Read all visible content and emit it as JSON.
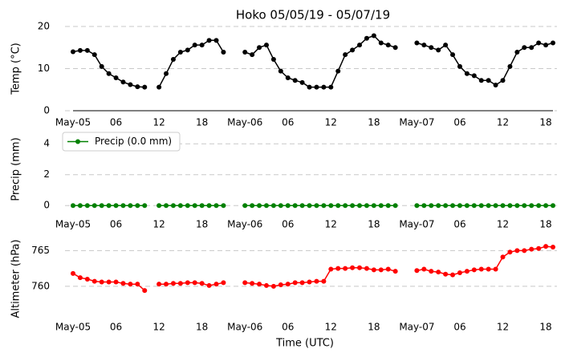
{
  "chart_data": [
    {
      "type": "line",
      "title": "Hoko 05/05/19 - 05/07/19",
      "ylabel": "Temp (°C)",
      "color": "#000000",
      "x_axis_line": true,
      "grid": true,
      "x": [
        0,
        1,
        2,
        3,
        4,
        5,
        6,
        7,
        8,
        9,
        10,
        11,
        12,
        13,
        14,
        15,
        16,
        17,
        18,
        19,
        20,
        21,
        22,
        23,
        24,
        25,
        26,
        27,
        28,
        29,
        30,
        31,
        32,
        33,
        34,
        35,
        36,
        37,
        38,
        39,
        40,
        41,
        42,
        43,
        44,
        45,
        46,
        47,
        48,
        49,
        50,
        51,
        52,
        53,
        54,
        55,
        56,
        57,
        58,
        59,
        60,
        61,
        62,
        63,
        64,
        65,
        66,
        67
      ],
      "values": [
        14,
        14.3,
        14.3,
        13.3,
        10.5,
        8.8,
        7.8,
        6.8,
        6.2,
        5.7,
        5.6,
        null,
        5.6,
        8.8,
        12.2,
        13.9,
        14.4,
        15.6,
        15.6,
        16.7,
        16.7,
        13.9,
        null,
        null,
        13.9,
        13.3,
        15,
        15.6,
        12.2,
        9.4,
        7.8,
        7.2,
        6.7,
        5.6,
        5.6,
        5.6,
        5.6,
        9.4,
        13.3,
        14.4,
        15.6,
        17.2,
        17.8,
        16.1,
        15.6,
        15,
        null,
        null,
        16.1,
        15.6,
        15,
        14.4,
        15.6,
        13.3,
        10.5,
        8.8,
        8.3,
        7.2,
        7.2,
        6.1,
        7.2,
        10.5,
        13.9,
        15,
        15,
        16.1,
        15.6,
        16.1
      ],
      "xlim": [
        0,
        67
      ],
      "ylim": [
        0,
        20
      ],
      "yticks": [
        0,
        10,
        20
      ],
      "xticks": [
        {
          "value": 0,
          "label": "May-05"
        },
        {
          "value": 6,
          "label": "06"
        },
        {
          "value": 12,
          "label": "12"
        },
        {
          "value": 18,
          "label": "18"
        },
        {
          "value": 24,
          "label": "May-06"
        },
        {
          "value": 30,
          "label": "06"
        },
        {
          "value": 36,
          "label": "12"
        },
        {
          "value": 42,
          "label": "18"
        },
        {
          "value": 48,
          "label": "May-07"
        },
        {
          "value": 54,
          "label": "06"
        },
        {
          "value": 60,
          "label": "12"
        },
        {
          "value": 66,
          "label": "18"
        }
      ]
    },
    {
      "type": "line",
      "ylabel": "Precip (mm)",
      "grid": true,
      "legend": "upper left",
      "x": [
        0,
        1,
        2,
        3,
        4,
        5,
        6,
        7,
        8,
        9,
        10,
        11,
        12,
        13,
        14,
        15,
        16,
        17,
        18,
        19,
        20,
        21,
        22,
        23,
        24,
        25,
        26,
        27,
        28,
        29,
        30,
        31,
        32,
        33,
        34,
        35,
        36,
        37,
        38,
        39,
        40,
        41,
        42,
        43,
        44,
        45,
        46,
        47,
        48,
        49,
        50,
        51,
        52,
        53,
        54,
        55,
        56,
        57,
        58,
        59,
        60,
        61,
        62,
        63,
        64,
        65,
        66,
        67
      ],
      "series": [
        {
          "name": "Precip (0.0 mm)",
          "color": "#008000",
          "values": [
            0,
            0,
            0,
            0,
            0,
            0,
            0,
            0,
            0,
            0,
            0,
            null,
            0,
            0,
            0,
            0,
            0,
            0,
            0,
            0,
            0,
            0,
            null,
            null,
            0,
            0,
            0,
            0,
            0,
            0,
            0,
            0,
            0,
            0,
            0,
            0,
            0,
            0,
            0,
            0,
            0,
            0,
            0,
            0,
            0,
            0,
            null,
            null,
            0,
            0,
            0,
            0,
            0,
            0,
            0,
            0,
            0,
            0,
            0,
            0,
            0,
            0,
            0,
            0,
            0,
            0,
            0,
            0
          ]
        }
      ],
      "xlim": [
        0,
        67
      ],
      "ylim": [
        -0.3,
        5
      ],
      "yticks": [
        0,
        2,
        4
      ],
      "xticks": [
        {
          "value": 0,
          "label": "May-05"
        },
        {
          "value": 6,
          "label": "06"
        },
        {
          "value": 12,
          "label": "12"
        },
        {
          "value": 18,
          "label": "18"
        },
        {
          "value": 24,
          "label": "May-06"
        },
        {
          "value": 30,
          "label": "06"
        },
        {
          "value": 36,
          "label": "12"
        },
        {
          "value": 42,
          "label": "18"
        },
        {
          "value": 48,
          "label": "May-07"
        },
        {
          "value": 54,
          "label": "06"
        },
        {
          "value": 60,
          "label": "12"
        },
        {
          "value": 66,
          "label": "18"
        }
      ]
    },
    {
      "type": "line",
      "ylabel": "Altimeter (hPa)",
      "xlabel": "Time (UTC)",
      "color": "#ff0000",
      "grid": true,
      "x": [
        0,
        1,
        2,
        3,
        4,
        5,
        6,
        7,
        8,
        9,
        10,
        11,
        12,
        13,
        14,
        15,
        16,
        17,
        18,
        19,
        20,
        21,
        22,
        23,
        24,
        25,
        26,
        27,
        28,
        29,
        30,
        31,
        32,
        33,
        34,
        35,
        36,
        37,
        38,
        39,
        40,
        41,
        42,
        43,
        44,
        45,
        46,
        47,
        48,
        49,
        50,
        51,
        52,
        53,
        54,
        55,
        56,
        57,
        58,
        59,
        60,
        61,
        62,
        63,
        64,
        65,
        66,
        67
      ],
      "values": [
        761.8,
        761.2,
        761,
        760.7,
        760.6,
        760.6,
        760.6,
        760.4,
        760.3,
        760.3,
        759.4,
        null,
        760.3,
        760.3,
        760.4,
        760.4,
        760.5,
        760.5,
        760.4,
        760.1,
        760.3,
        760.5,
        null,
        null,
        760.5,
        760.4,
        760.3,
        760.1,
        760,
        760.2,
        760.3,
        760.5,
        760.5,
        760.6,
        760.7,
        760.7,
        762.4,
        762.5,
        762.5,
        762.6,
        762.6,
        762.5,
        762.3,
        762.3,
        762.4,
        762.1,
        null,
        null,
        762.2,
        762.4,
        762.1,
        762,
        761.7,
        761.6,
        761.9,
        762.1,
        762.3,
        762.4,
        762.4,
        762.4,
        764.1,
        764.8,
        765,
        765,
        765.2,
        765.3,
        765.6,
        765.5
      ],
      "xlim": [
        0,
        67
      ],
      "ylim": [
        755.7,
        766.4
      ],
      "yticks": [
        760,
        765
      ],
      "xticks": [
        {
          "value": 0,
          "label": "May-05"
        },
        {
          "value": 6,
          "label": "06"
        },
        {
          "value": 12,
          "label": "12"
        },
        {
          "value": 18,
          "label": "18"
        },
        {
          "value": 24,
          "label": "May-06"
        },
        {
          "value": 30,
          "label": "06"
        },
        {
          "value": 36,
          "label": "12"
        },
        {
          "value": 42,
          "label": "18"
        },
        {
          "value": 48,
          "label": "May-07"
        },
        {
          "value": 54,
          "label": "06"
        },
        {
          "value": 60,
          "label": "12"
        },
        {
          "value": 66,
          "label": "18"
        }
      ]
    }
  ]
}
